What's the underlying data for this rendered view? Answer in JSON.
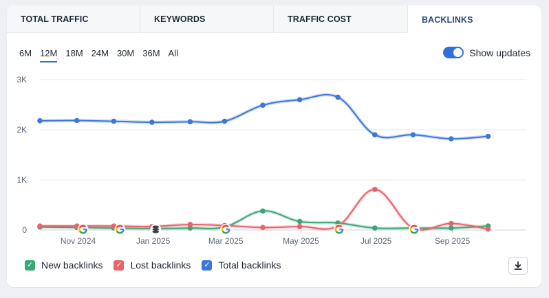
{
  "tabs": [
    {
      "label": "TOTAL TRAFFIC"
    },
    {
      "label": "KEYWORDS"
    },
    {
      "label": "TRAFFIC COST"
    },
    {
      "label": "BACKLINKS"
    }
  ],
  "ranges": [
    "6M",
    "12M",
    "18M",
    "24M",
    "30M",
    "36M",
    "All"
  ],
  "active_range": "12M",
  "show_updates": {
    "label": "Show updates",
    "on": true
  },
  "legend": [
    {
      "label": "New backlinks",
      "color": "#3aa776"
    },
    {
      "label": "Lost backlinks",
      "color": "#e8636a"
    },
    {
      "label": "Total backlinks",
      "color": "#3d78d8"
    }
  ],
  "download_icon": "download-icon",
  "chart_data": {
    "type": "line",
    "x": [
      "2024-10-01",
      "2024-10-31",
      "2024-11-30",
      "2024-12-31",
      "2025-01-31",
      "2025-02-28",
      "2025-03-31",
      "2025-04-30",
      "2025-05-31",
      "2025-06-30",
      "2025-07-31",
      "2025-08-31",
      "2025-09-30",
      "2025-10-31"
    ],
    "x_ticks": [
      {
        "date": "2024-11-01",
        "label": "Nov 2024"
      },
      {
        "date": "2025-01-01",
        "label": "Jan 2025"
      },
      {
        "date": "2025-03-01",
        "label": "Mar 2025"
      },
      {
        "date": "2025-05-01",
        "label": "May 2025"
      },
      {
        "date": "2025-07-01",
        "label": "Jul 2025"
      },
      {
        "date": "2025-09-01",
        "label": "Sep 2025"
      }
    ],
    "y_ticks": [
      {
        "value": 0,
        "label": "0"
      },
      {
        "value": 1000,
        "label": "1K"
      },
      {
        "value": 2000,
        "label": "2K"
      },
      {
        "value": 3000,
        "label": "3K"
      }
    ],
    "ylim": [
      0,
      3000
    ],
    "grid": true,
    "series": [
      {
        "name": "Total backlinks",
        "color": "#3d78d8",
        "values": [
          2180,
          2185,
          2170,
          2150,
          2160,
          2170,
          2490,
          2600,
          2650,
          1900,
          1900,
          1820,
          1870,
          null
        ]
      },
      {
        "name": "New backlinks",
        "color": "#3aa776",
        "values": [
          60,
          50,
          40,
          30,
          40,
          60,
          380,
          170,
          140,
          40,
          40,
          40,
          80,
          null
        ]
      },
      {
        "name": "Lost backlinks",
        "color": "#e8636a",
        "values": [
          80,
          80,
          80,
          70,
          110,
          90,
          50,
          70,
          80,
          810,
          40,
          130,
          20,
          null
        ]
      }
    ],
    "update_markers": [
      {
        "date": "2024-11-05",
        "icon": "google-icon"
      },
      {
        "date": "2024-12-05",
        "icon": "google-icon"
      },
      {
        "date": "2025-01-03",
        "icon": "database-icon"
      },
      {
        "date": "2025-03-01",
        "icon": "google-icon"
      },
      {
        "date": "2025-06-01",
        "icon": "google-icon"
      },
      {
        "date": "2025-08-01",
        "icon": "google-icon"
      }
    ]
  }
}
